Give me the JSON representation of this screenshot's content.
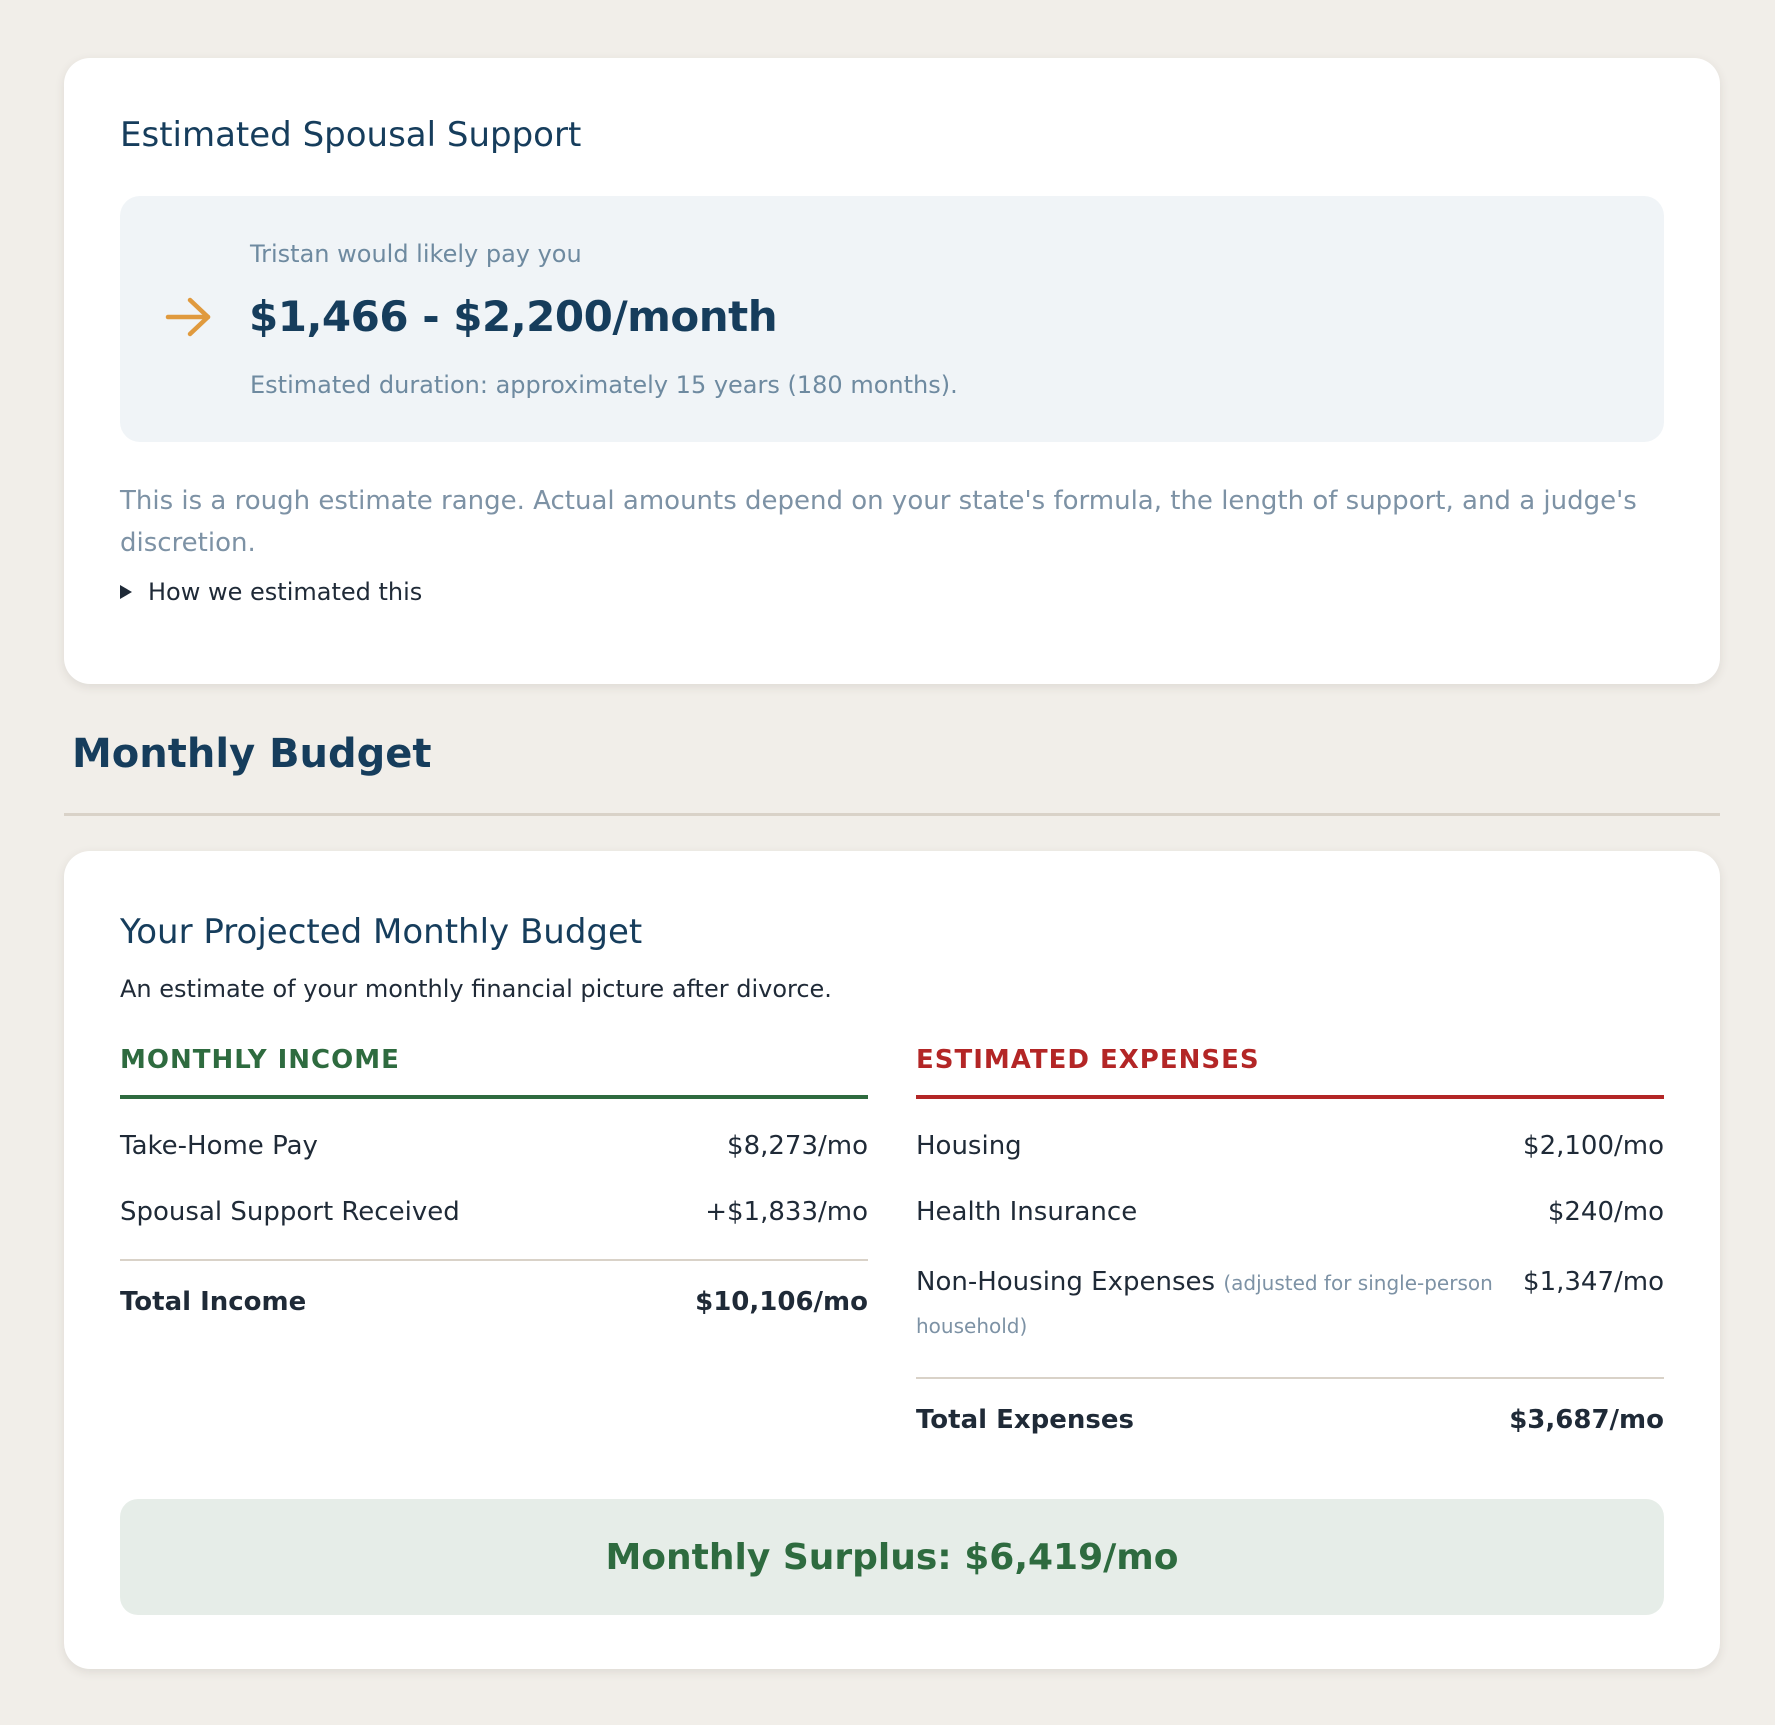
{
  "support": {
    "title": "Estimated Spousal Support",
    "payer_line": "Tristan would likely pay you",
    "amount_range": "$1,466 - $2,200/month",
    "duration": "Estimated duration: approximately 15 years (180 months).",
    "disclaimer": "This is a rough estimate range. Actual amounts depend on your state's formula, the length of support, and a judge's discretion.",
    "details_toggle": "How we estimated this",
    "arrow_color": "#e09a3e"
  },
  "section": {
    "heading": "Monthly Budget"
  },
  "budget": {
    "title": "Your Projected Monthly Budget",
    "subtitle": "An estimate of your monthly financial picture after divorce.",
    "income": {
      "heading": "MONTHLY INCOME",
      "items": [
        {
          "label": "Take-Home Pay",
          "value": "$8,273/mo"
        },
        {
          "label": "Spousal Support Received",
          "value": "+$1,833/mo"
        }
      ],
      "total_label": "Total Income",
      "total_value": "$10,106/mo"
    },
    "expenses": {
      "heading": "ESTIMATED EXPENSES",
      "items": [
        {
          "label": "Housing",
          "value": "$2,100/mo"
        },
        {
          "label": "Health Insurance",
          "value": "$240/mo"
        },
        {
          "label": "Non-Housing Expenses",
          "note": "(adjusted for single-person household)",
          "value": "$1,347/mo"
        }
      ],
      "total_label": "Total Expenses",
      "total_value": "$3,687/mo"
    },
    "surplus": "Monthly Surplus: $6,419/mo"
  },
  "colors": {
    "navy": "#163d5c",
    "income_green": "#2e6b3f",
    "expense_red": "#b32626",
    "page_background": "#f1eee9"
  }
}
